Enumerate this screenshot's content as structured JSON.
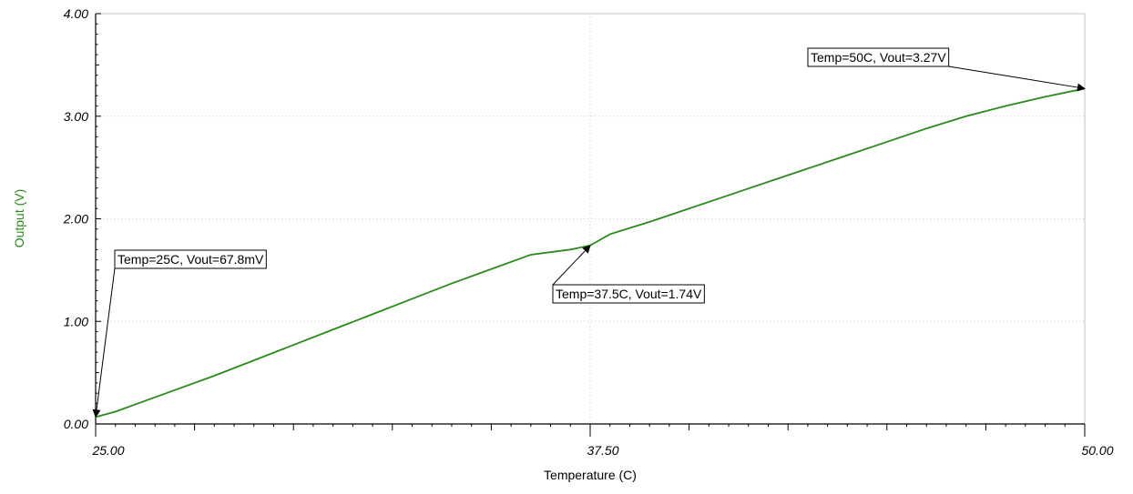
{
  "chart_data": {
    "type": "line",
    "xlabel": "Temperature (C)",
    "ylabel": "Output (V)",
    "xlim": [
      25,
      50
    ],
    "ylim": [
      0,
      4
    ],
    "x_ticks": [
      {
        "value": 25,
        "label": "25.00"
      },
      {
        "value": 37.5,
        "label": "37.50"
      },
      {
        "value": 50,
        "label": "50.00"
      }
    ],
    "y_ticks": [
      {
        "value": 0,
        "label": "0.00"
      },
      {
        "value": 1,
        "label": "1.00"
      },
      {
        "value": 2,
        "label": "2.00"
      },
      {
        "value": 3,
        "label": "3.00"
      },
      {
        "value": 4,
        "label": "4.00"
      }
    ],
    "grid": true,
    "series": [
      {
        "color": "#2a8a1c",
        "x": [
          25,
          25.5,
          26,
          27,
          28,
          29,
          30,
          31,
          32,
          33,
          34,
          35,
          36,
          37,
          37.5,
          38,
          39,
          40,
          41,
          42,
          43,
          44,
          45,
          46,
          47,
          48,
          49,
          50
        ],
        "y": [
          0.068,
          0.12,
          0.19,
          0.33,
          0.47,
          0.62,
          0.77,
          0.92,
          1.07,
          1.22,
          1.37,
          1.51,
          1.65,
          1.7,
          1.74,
          1.85,
          1.97,
          2.1,
          2.23,
          2.36,
          2.49,
          2.62,
          2.75,
          2.88,
          3.0,
          3.1,
          3.19,
          3.27
        ]
      }
    ],
    "annotations": [
      {
        "text": "Temp=25C, Vout=67.8mV",
        "x": 25,
        "y": 0.068
      },
      {
        "text": "Temp=37.5C, Vout=1.74V",
        "x": 37.5,
        "y": 1.74
      },
      {
        "text": "Temp=50C, Vout=3.27V",
        "x": 50,
        "y": 3.27
      }
    ],
    "colors": {
      "series": "#2a8a1c",
      "ylabel": "#2a8a1c",
      "axis": "#000000",
      "grid": "#c8c8c8",
      "frame": "#c0c0c0"
    }
  }
}
